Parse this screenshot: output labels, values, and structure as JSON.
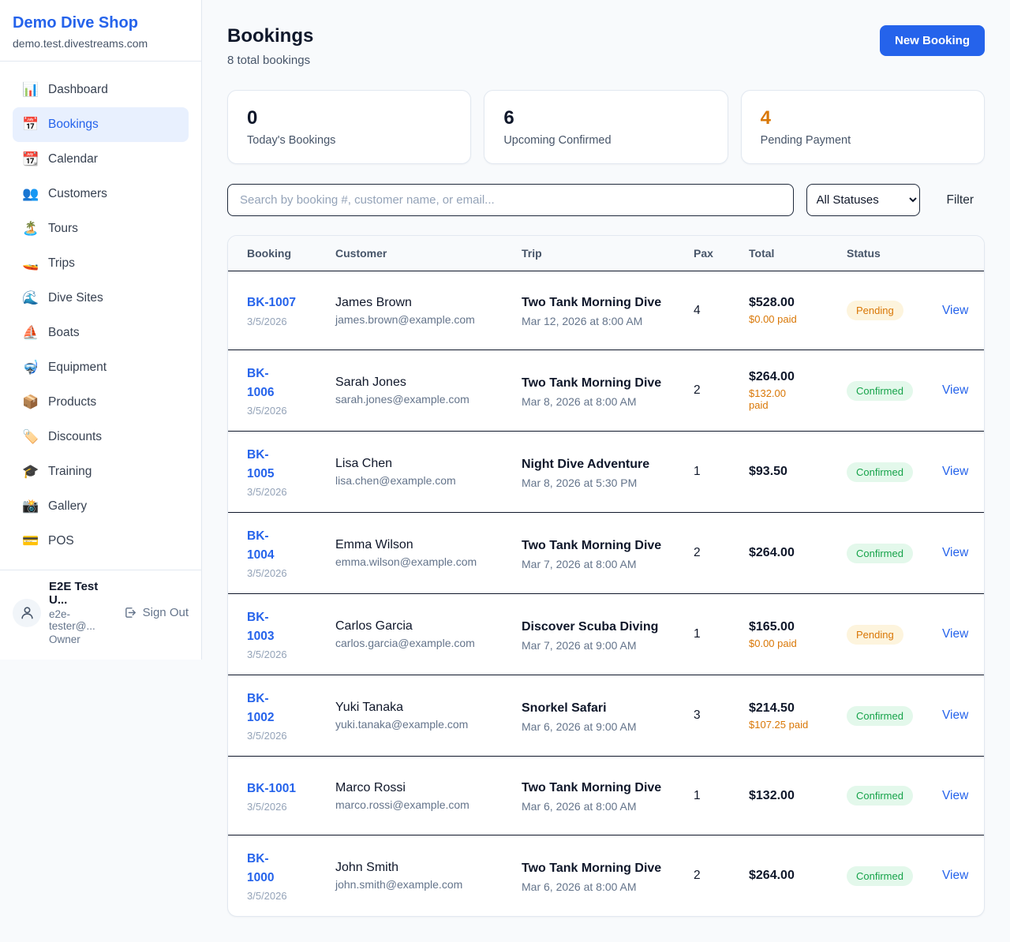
{
  "sidebar": {
    "brand": "Demo Dive Shop",
    "domain": "demo.test.divestreams.com",
    "items": [
      {
        "label": "Dashboard",
        "icon": "📊",
        "active": false
      },
      {
        "label": "Bookings",
        "icon": "📅",
        "active": true
      },
      {
        "label": "Calendar",
        "icon": "📆",
        "active": false
      },
      {
        "label": "Customers",
        "icon": "👥",
        "active": false
      },
      {
        "label": "Tours",
        "icon": "🏝️",
        "active": false
      },
      {
        "label": "Trips",
        "icon": "🚤",
        "active": false
      },
      {
        "label": "Dive Sites",
        "icon": "🌊",
        "active": false
      },
      {
        "label": "Boats",
        "icon": "⛵",
        "active": false
      },
      {
        "label": "Equipment",
        "icon": "🤿",
        "active": false
      },
      {
        "label": "Products",
        "icon": "📦",
        "active": false
      },
      {
        "label": "Discounts",
        "icon": "🏷️",
        "active": false
      },
      {
        "label": "Training",
        "icon": "🎓",
        "active": false
      },
      {
        "label": "Gallery",
        "icon": "📸",
        "active": false
      },
      {
        "label": "POS",
        "icon": "💳",
        "active": false
      }
    ],
    "user": {
      "name": "E2E Test U...",
      "email": "e2e-tester@...",
      "role": "Owner",
      "sign_out_label": "Sign Out"
    }
  },
  "header": {
    "title": "Bookings",
    "subtitle": "8 total bookings",
    "new_booking_label": "New Booking"
  },
  "stats": [
    {
      "value": "0",
      "label": "Today's Bookings",
      "color": "#0f172a"
    },
    {
      "value": "6",
      "label": "Upcoming Confirmed",
      "color": "#0f172a"
    },
    {
      "value": "4",
      "label": "Pending Payment",
      "color": "#d97706"
    }
  ],
  "filters": {
    "search_placeholder": "Search by booking #, customer name, or email...",
    "status_selected": "All Statuses",
    "filter_label": "Filter"
  },
  "table": {
    "columns": [
      "Booking",
      "Customer",
      "Trip",
      "Pax",
      "Total",
      "Status",
      ""
    ],
    "view_label": "View",
    "rows": [
      {
        "id": "BK-1007",
        "id_wrap": false,
        "date": "3/5/2026",
        "customer": "James Brown",
        "email": "james.brown@example.com",
        "trip": "Two Tank Morning Dive",
        "trip_time": "Mar 12, 2026 at 8:00 AM",
        "pax": "4",
        "total": "$528.00",
        "paid": "$0.00 paid",
        "status": "Pending"
      },
      {
        "id": "BK-1006",
        "id_wrap": true,
        "date": "3/5/2026",
        "customer": "Sarah Jones",
        "email": "sarah.jones@example.com",
        "trip": "Two Tank Morning Dive",
        "trip_time": "Mar 8, 2026 at 8:00 AM",
        "pax": "2",
        "total": "$264.00",
        "paid": "$132.00\npaid",
        "status": "Confirmed"
      },
      {
        "id": "BK-1005",
        "id_wrap": true,
        "date": "3/5/2026",
        "customer": "Lisa Chen",
        "email": "lisa.chen@example.com",
        "trip": "Night Dive Adventure",
        "trip_time": "Mar 8, 2026 at 5:30 PM",
        "pax": "1",
        "total": "$93.50",
        "paid": "",
        "status": "Confirmed"
      },
      {
        "id": "BK-1004",
        "id_wrap": true,
        "date": "3/5/2026",
        "customer": "Emma Wilson",
        "email": "emma.wilson@example.com",
        "trip": "Two Tank Morning Dive",
        "trip_time": "Mar 7, 2026 at 8:00 AM",
        "pax": "2",
        "total": "$264.00",
        "paid": "",
        "status": "Confirmed"
      },
      {
        "id": "BK-1003",
        "id_wrap": true,
        "date": "3/5/2026",
        "customer": "Carlos Garcia",
        "email": "carlos.garcia@example.com",
        "trip": "Discover Scuba Diving",
        "trip_time": "Mar 7, 2026 at 9:00 AM",
        "pax": "1",
        "total": "$165.00",
        "paid": "$0.00 paid",
        "status": "Pending"
      },
      {
        "id": "BK-1002",
        "id_wrap": true,
        "date": "3/5/2026",
        "customer": "Yuki Tanaka",
        "email": "yuki.tanaka@example.com",
        "trip": "Snorkel Safari",
        "trip_time": "Mar 6, 2026 at 9:00 AM",
        "pax": "3",
        "total": "$214.50",
        "paid": "$107.25 paid",
        "status": "Confirmed"
      },
      {
        "id": "BK-1001",
        "id_wrap": false,
        "date": "3/5/2026",
        "customer": "Marco Rossi",
        "email": "marco.rossi@example.com",
        "trip": "Two Tank Morning Dive",
        "trip_time": "Mar 6, 2026 at 8:00 AM",
        "pax": "1",
        "total": "$132.00",
        "paid": "",
        "status": "Confirmed"
      },
      {
        "id": "BK-1000",
        "id_wrap": true,
        "date": "3/5/2026",
        "customer": "John Smith",
        "email": "john.smith@example.com",
        "trip": "Two Tank Morning Dive",
        "trip_time": "Mar 6, 2026 at 8:00 AM",
        "pax": "2",
        "total": "$264.00",
        "paid": "",
        "status": "Confirmed"
      }
    ]
  },
  "colors": {
    "accent_blue": "#2563eb",
    "pending_text": "#d97706",
    "pending_bg": "#fdf4dd",
    "confirmed_text": "#16a34a",
    "confirmed_bg": "#e3f8eb",
    "paid_orange": "#d97706",
    "page_bg": "#f8fafc",
    "dark_border": "#0f172a"
  }
}
